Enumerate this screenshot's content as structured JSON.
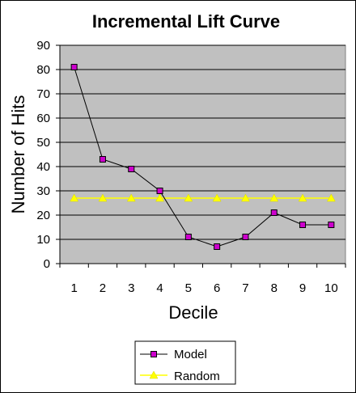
{
  "chart_data": {
    "type": "line",
    "title": "Incremental Lift Curve",
    "xlabel": "Decile",
    "ylabel": "Number of Hits",
    "categories": [
      "1",
      "2",
      "3",
      "4",
      "5",
      "6",
      "7",
      "8",
      "9",
      "10"
    ],
    "ylim": [
      0,
      90
    ],
    "yticks": [
      "0",
      "10",
      "20",
      "30",
      "40",
      "50",
      "60",
      "70",
      "80",
      "90"
    ],
    "grid": true,
    "legend_position": "bottom",
    "plot_background": "#c0c0c0",
    "series": [
      {
        "name": "Model",
        "values": [
          81,
          43,
          39,
          30,
          11,
          7,
          11,
          21,
          16,
          16
        ],
        "line_color": "#000000",
        "marker": "square",
        "marker_color": "#cc00cc"
      },
      {
        "name": "Random",
        "values": [
          27,
          27,
          27,
          27,
          27,
          27,
          27,
          27,
          27,
          27
        ],
        "line_color": "#ffff00",
        "marker": "triangle",
        "marker_color": "#ffff00"
      }
    ]
  }
}
